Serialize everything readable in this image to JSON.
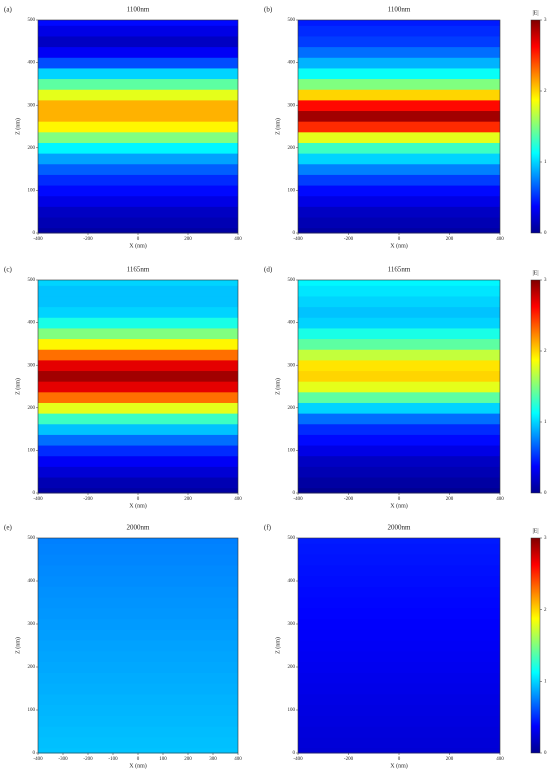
{
  "chart_data": [
    {
      "type": "heatmap",
      "panel_label": "(a)",
      "title": "1100nm",
      "xlabel": "X (nm)",
      "ylabel": "Z (nm)",
      "xlim": [
        -400,
        400
      ],
      "xticks": [
        -400,
        -200,
        0,
        200,
        400
      ],
      "ylim": [
        0,
        500
      ],
      "yticks": [
        0,
        100,
        200,
        300,
        400,
        500
      ],
      "colormap": "jet",
      "vlim": [
        0,
        3
      ],
      "z": [
        0,
        25,
        50,
        75,
        100,
        125,
        150,
        175,
        200,
        225,
        250,
        275,
        300,
        325,
        350,
        375,
        400,
        425,
        450,
        475,
        500
      ],
      "values": [
        0.1,
        0.15,
        0.2,
        0.3,
        0.4,
        0.5,
        0.65,
        0.85,
        1.1,
        1.5,
        1.9,
        2.1,
        2.1,
        1.8,
        1.4,
        1.0,
        0.6,
        0.35,
        0.2,
        0.3,
        0.4
      ]
    },
    {
      "type": "heatmap",
      "panel_label": "(b)",
      "title": "1100nm",
      "xlabel": "X (nm)",
      "ylabel": "Z (nm)",
      "xlim": [
        -400,
        400
      ],
      "xticks": [
        -400,
        -200,
        0,
        200,
        400
      ],
      "ylim": [
        0,
        500
      ],
      "yticks": [
        0,
        100,
        200,
        300,
        400,
        500
      ],
      "colormap": "jet",
      "vlim": [
        0,
        3
      ],
      "colorbar": {
        "label": "|E|",
        "ticks": [
          0,
          1,
          2,
          3
        ]
      },
      "z": [
        0,
        25,
        50,
        75,
        100,
        125,
        150,
        175,
        200,
        225,
        250,
        275,
        300,
        325,
        350,
        375,
        400,
        425,
        450,
        475,
        500
      ],
      "values": [
        0.1,
        0.15,
        0.2,
        0.3,
        0.4,
        0.55,
        0.75,
        1.0,
        1.3,
        1.8,
        2.5,
        2.9,
        2.6,
        2.0,
        1.5,
        1.15,
        0.9,
        0.7,
        0.55,
        0.5,
        0.45
      ]
    },
    {
      "type": "heatmap",
      "panel_label": "(c)",
      "title": "1165nm",
      "xlabel": "X (nm)",
      "ylabel": "Z (nm)",
      "xlim": [
        -400,
        400
      ],
      "xticks": [
        -400,
        -200,
        0,
        200,
        400
      ],
      "ylim": [
        0,
        500
      ],
      "yticks": [
        0,
        100,
        200,
        300,
        400,
        500
      ],
      "colormap": "jet",
      "vlim": [
        0,
        3
      ],
      "z": [
        0,
        25,
        50,
        75,
        100,
        125,
        150,
        175,
        200,
        225,
        250,
        275,
        300,
        325,
        350,
        375,
        400,
        425,
        450,
        475,
        500
      ],
      "values": [
        0.1,
        0.15,
        0.25,
        0.35,
        0.5,
        0.7,
        0.95,
        1.3,
        1.8,
        2.3,
        2.7,
        2.9,
        2.7,
        2.3,
        1.9,
        1.5,
        1.2,
        1.0,
        0.95,
        0.95,
        1.0
      ]
    },
    {
      "type": "heatmap",
      "panel_label": "(d)",
      "title": "1165nm",
      "xlabel": "X (nm)",
      "ylabel": "Z (nm)",
      "xlim": [
        -400,
        400
      ],
      "xticks": [
        -400,
        -200,
        0,
        200,
        400
      ],
      "ylim": [
        0,
        500
      ],
      "yticks": [
        0,
        100,
        200,
        300,
        400,
        500
      ],
      "colormap": "jet",
      "vlim": [
        0,
        3
      ],
      "colorbar": {
        "label": "|E|",
        "ticks": [
          0,
          1,
          2,
          3
        ]
      },
      "z": [
        0,
        25,
        50,
        75,
        100,
        125,
        150,
        175,
        200,
        225,
        250,
        275,
        300,
        325,
        350,
        375,
        400,
        425,
        450,
        475,
        500
      ],
      "values": [
        0.05,
        0.1,
        0.15,
        0.2,
        0.3,
        0.4,
        0.5,
        0.7,
        1.0,
        1.4,
        1.8,
        2.0,
        1.95,
        1.7,
        1.4,
        1.2,
        1.0,
        0.95,
        1.0,
        1.05,
        1.1
      ]
    },
    {
      "type": "heatmap",
      "panel_label": "(e)",
      "title": "2000nm",
      "xlabel": "X (nm)",
      "ylabel": "Z (nm)",
      "xlim": [
        -400,
        400
      ],
      "xticks": [
        -400,
        -300,
        -200,
        -100,
        0,
        100,
        200,
        300,
        400
      ],
      "ylim": [
        0,
        500
      ],
      "yticks": [
        0,
        100,
        200,
        300,
        400,
        500
      ],
      "colormap": "jet",
      "vlim": [
        0,
        3
      ],
      "z": [
        0,
        25,
        50,
        75,
        100,
        125,
        150,
        175,
        200,
        225,
        250,
        275,
        300,
        325,
        350,
        375,
        400,
        425,
        450,
        475,
        500
      ],
      "values": [
        0.95,
        0.94,
        0.93,
        0.92,
        0.91,
        0.9,
        0.89,
        0.88,
        0.87,
        0.86,
        0.85,
        0.84,
        0.83,
        0.82,
        0.81,
        0.8,
        0.79,
        0.78,
        0.77,
        0.76,
        0.75
      ]
    },
    {
      "type": "heatmap",
      "panel_label": "(f)",
      "title": "2000nm",
      "xlabel": "X (nm)",
      "ylabel": "Z (nm)",
      "xlim": [
        -400,
        400
      ],
      "xticks": [
        -400,
        -200,
        0,
        200,
        400
      ],
      "ylim": [
        0,
        500
      ],
      "yticks": [
        0,
        100,
        200,
        300,
        400,
        500
      ],
      "colormap": "jet",
      "vlim": [
        0,
        3
      ],
      "colorbar": {
        "label": "|E|",
        "ticks": [
          0,
          1,
          2,
          3
        ]
      },
      "z": [
        0,
        25,
        50,
        75,
        100,
        125,
        150,
        175,
        200,
        225,
        250,
        275,
        300,
        325,
        350,
        375,
        400,
        425,
        450,
        475,
        500
      ],
      "values": [
        0.25,
        0.26,
        0.27,
        0.28,
        0.29,
        0.3,
        0.31,
        0.32,
        0.33,
        0.34,
        0.35,
        0.36,
        0.37,
        0.38,
        0.39,
        0.4,
        0.41,
        0.42,
        0.43,
        0.44,
        0.45
      ]
    }
  ]
}
